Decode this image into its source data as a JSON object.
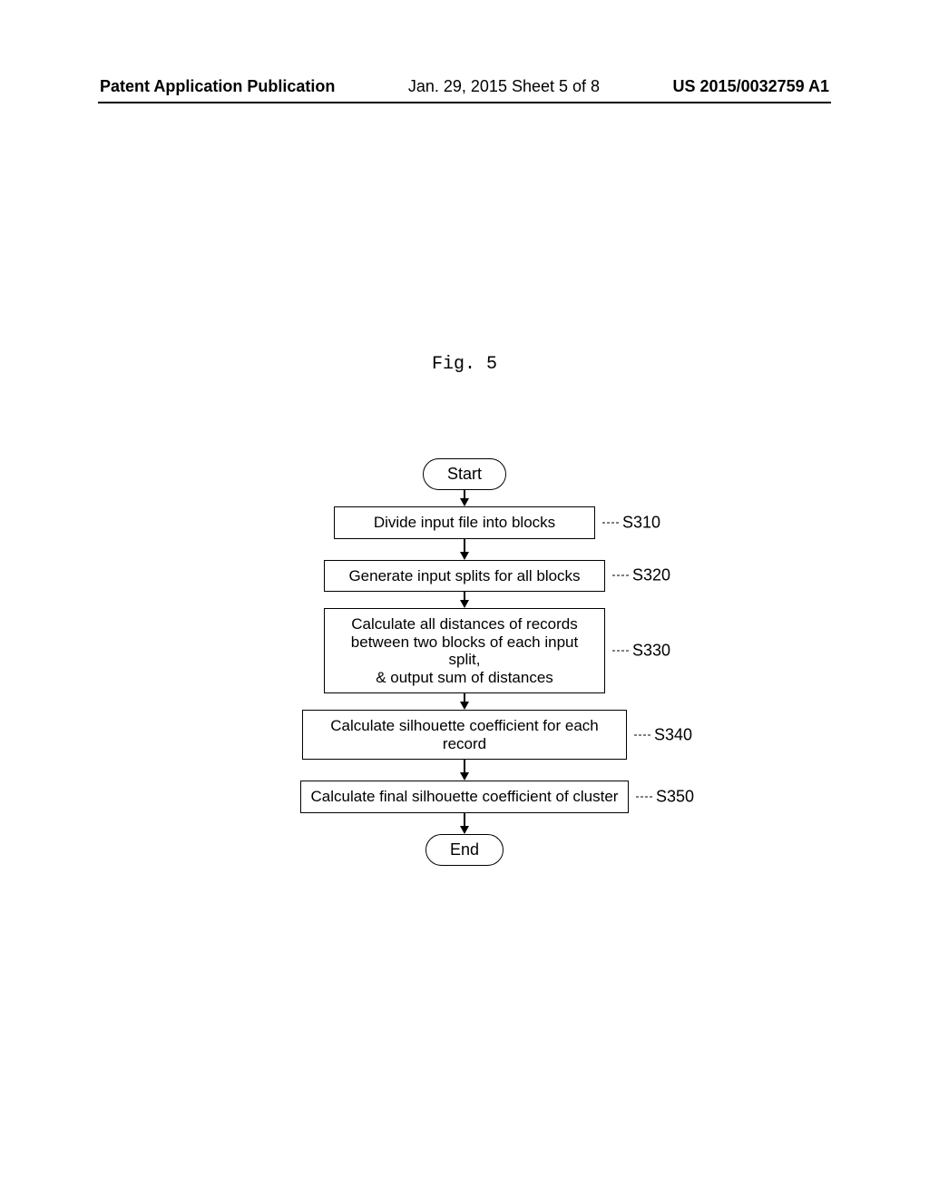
{
  "header": {
    "left": "Patent Application Publication",
    "center": "Jan. 29, 2015  Sheet 5 of 8",
    "right": "US 2015/0032759 A1"
  },
  "figure_label": "Fig. 5",
  "flowchart": {
    "start": "Start",
    "end": "End",
    "steps": [
      {
        "text": "Divide input file into blocks",
        "ref": "S310",
        "width": "w-narrow"
      },
      {
        "text": "Generate input splits for all blocks",
        "ref": "S320",
        "width": "w-med"
      },
      {
        "text": "Calculate all distances of records\nbetween two blocks of each input split,\n& output sum of distances",
        "ref": "S330",
        "width": "w-med"
      },
      {
        "text": "Calculate silhouette coefficient for each record",
        "ref": "S340",
        "width": "w-wide"
      },
      {
        "text": "Calculate final silhouette coefficient of cluster",
        "ref": "S350",
        "width": "w-xwide"
      }
    ]
  }
}
